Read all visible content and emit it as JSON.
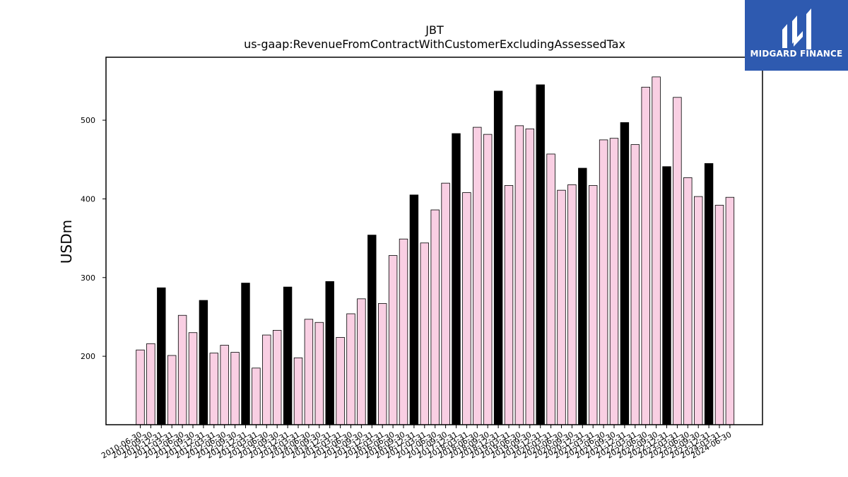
{
  "colors": {
    "highlight_bar": "#000000",
    "normal_bar": "#f9cfe3",
    "bar_edge": "#000000",
    "logo_bg": "#2e5ab0",
    "logo_fg": "#ffffff"
  },
  "logo": {
    "name": "MIDGARD FINANCE",
    "icon": "midgard-mark-icon"
  },
  "chart_data": {
    "type": "bar",
    "title": "JBT",
    "subtitle": "us-gaap:RevenueFromContractWithCustomerExcludingAssessedTax",
    "xlabel": "",
    "ylabel": "USDm",
    "ylim": [
      113,
      580
    ],
    "yticks": [
      200,
      300,
      400,
      500
    ],
    "grid": false,
    "categories": [
      "2010-06-30",
      "2010-09-30",
      "2010-12-31",
      "2011-03-31",
      "2011-06-30",
      "2011-09-30",
      "2011-12-31",
      "2012-03-31",
      "2012-06-30",
      "2012-09-30",
      "2012-12-31",
      "2013-03-31",
      "2013-06-30",
      "2013-09-30",
      "2013-12-31",
      "2014-03-31",
      "2014-06-30",
      "2014-09-30",
      "2014-12-31",
      "2015-03-31",
      "2015-06-30",
      "2015-09-30",
      "2015-12-31",
      "2016-03-31",
      "2016-06-30",
      "2016-09-30",
      "2016-12-31",
      "2017-03-31",
      "2017-06-30",
      "2017-09-30",
      "2017-12-31",
      "2018-03-31",
      "2018-06-30",
      "2018-09-30",
      "2018-12-31",
      "2019-03-31",
      "2019-06-30",
      "2019-09-30",
      "2019-12-31",
      "2020-03-31",
      "2020-06-30",
      "2020-09-30",
      "2020-12-31",
      "2021-03-31",
      "2021-06-30",
      "2021-09-30",
      "2021-12-31",
      "2022-03-31",
      "2022-06-30",
      "2022-09-30",
      "2022-12-31",
      "2023-03-31",
      "2023-06-30",
      "2023-09-30",
      "2023-12-31",
      "2024-03-31",
      "2024-06-30"
    ],
    "values": [
      208,
      216,
      287,
      201,
      252,
      230,
      271,
      204,
      214,
      205,
      293,
      185,
      227,
      233,
      288,
      198,
      247,
      243,
      295,
      224,
      254,
      273,
      354,
      267,
      328,
      349,
      405,
      344,
      386,
      420,
      483,
      408,
      491,
      482,
      537,
      417,
      493,
      489,
      545,
      457,
      411,
      418,
      439,
      417,
      475,
      477,
      497,
      469,
      542,
      555,
      441,
      529,
      427,
      403,
      445,
      392,
      402
    ],
    "highlight": [
      false,
      false,
      true,
      false,
      false,
      false,
      true,
      false,
      false,
      false,
      true,
      false,
      false,
      false,
      true,
      false,
      false,
      false,
      true,
      false,
      false,
      false,
      true,
      false,
      false,
      false,
      true,
      false,
      false,
      false,
      true,
      false,
      false,
      false,
      true,
      false,
      false,
      false,
      true,
      false,
      false,
      false,
      true,
      false,
      false,
      false,
      true,
      false,
      false,
      false,
      true,
      false,
      false,
      false,
      true,
      false,
      false
    ]
  }
}
